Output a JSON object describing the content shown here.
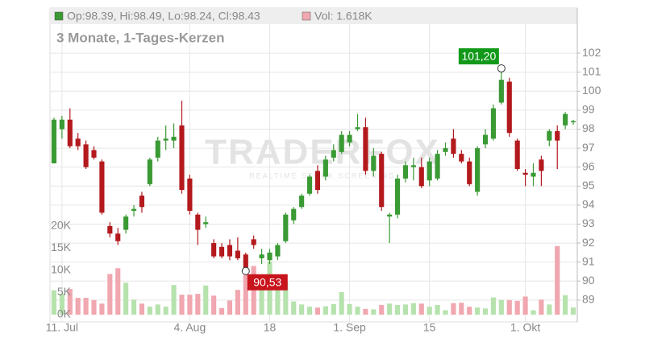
{
  "chart_data": {
    "type": "candlestick",
    "title": "3 Monate, 1-Tages-Kerzen",
    "info": "Op:98.39, Hi:98.49, Lo:98.24, Cl:98.43",
    "volume_info": "Vol: 1.618K",
    "watermark": "TRADERFOX",
    "watermark_sub": "REALTIME STOCK SCREENING",
    "categories": [
      null,
      "11. Jul",
      null,
      null,
      null,
      null,
      null,
      null,
      null,
      null,
      null,
      null,
      null,
      null,
      null,
      null,
      null,
      "4. Aug",
      null,
      null,
      null,
      null,
      null,
      null,
      null,
      null,
      null,
      "18",
      null,
      null,
      null,
      null,
      null,
      null,
      null,
      null,
      null,
      "1. Sep",
      null,
      null,
      null,
      null,
      null,
      null,
      null,
      null,
      null,
      "15",
      null,
      null,
      null,
      null,
      null,
      null,
      null,
      null,
      null,
      null,
      null,
      "1. Okt",
      null,
      null,
      null,
      null,
      null,
      null
    ],
    "open": [
      96.2,
      98.0,
      98.5,
      97.5,
      97.2,
      96.9,
      96.3,
      92.9,
      92.5,
      92.7,
      93.7,
      94.5,
      95.1,
      96.5,
      97.4,
      97.4,
      98.2,
      95.4,
      93.5,
      93.0,
      92.0,
      91.8,
      91.9,
      91.6,
      91.4,
      92.2,
      91.2,
      91.1,
      91.3,
      92.1,
      93.2,
      93.9,
      94.6,
      95.8,
      95.5,
      96.5,
      96.8,
      97.3,
      98.0,
      98.1,
      95.8,
      96.7,
      93.4,
      93.5,
      95.4,
      96.0,
      96.0,
      95.3,
      95.4,
      96.8,
      97.5,
      96.7,
      96.3,
      94.7,
      97.2,
      97.5,
      99.4,
      100.5,
      97.4,
      95.7,
      95.5,
      96.4,
      97.4,
      97.9,
      98.2,
      98.39
    ],
    "high": [
      98.6,
      98.7,
      99.1,
      97.8,
      97.4,
      97.1,
      96.4,
      93.1,
      92.8,
      93.5,
      94.0,
      94.7,
      96.5,
      97.6,
      98.2,
      98.3,
      99.5,
      95.6,
      93.6,
      93.4,
      92.2,
      92.0,
      92.2,
      92.3,
      91.5,
      92.4,
      91.7,
      91.7,
      92.0,
      93.6,
      93.9,
      94.6,
      95.6,
      96.1,
      96.6,
      97.2,
      97.9,
      97.9,
      98.8,
      98.6,
      97.0,
      96.8,
      93.6,
      95.6,
      96.3,
      96.5,
      96.5,
      96.5,
      96.9,
      97.3,
      98.0,
      96.9,
      96.5,
      97.1,
      98.0,
      99.3,
      101.2,
      100.7,
      97.5,
      95.9,
      96.2,
      96.6,
      98.0,
      98.2,
      98.9,
      98.49
    ],
    "low": [
      96.2,
      97.5,
      97.0,
      96.9,
      95.9,
      96.4,
      93.5,
      92.3,
      91.9,
      92.5,
      93.4,
      93.6,
      95.0,
      96.3,
      96.9,
      97.0,
      94.6,
      93.5,
      91.9,
      92.8,
      91.2,
      91.2,
      91.1,
      91.1,
      90.53,
      91.7,
      90.9,
      90.9,
      91.1,
      92.0,
      93.0,
      93.8,
      94.5,
      94.6,
      95.3,
      96.3,
      96.7,
      97.1,
      97.9,
      95.6,
      95.5,
      93.7,
      92.0,
      93.3,
      95.2,
      95.3,
      94.9,
      95.0,
      95.3,
      96.6,
      96.5,
      96.2,
      95.0,
      94.5,
      97.0,
      97.4,
      99.3,
      97.6,
      95.8,
      95.0,
      95.0,
      95.0,
      97.1,
      95.9,
      98.0,
      98.24
    ],
    "close": [
      98.5,
      98.5,
      97.1,
      97.1,
      96.0,
      96.5,
      93.6,
      92.5,
      92.1,
      93.4,
      93.8,
      93.9,
      96.4,
      97.4,
      97.5,
      97.6,
      94.8,
      93.7,
      92.7,
      93.1,
      91.3,
      91.3,
      91.3,
      91.2,
      90.6,
      91.9,
      91.4,
      91.5,
      91.9,
      93.5,
      93.8,
      94.5,
      95.5,
      94.8,
      96.4,
      96.9,
      97.7,
      97.7,
      98.1,
      95.8,
      96.6,
      93.9,
      93.5,
      95.4,
      96.1,
      96.1,
      95.0,
      96.3,
      96.7,
      97.0,
      96.7,
      96.3,
      95.1,
      97.0,
      97.7,
      99.1,
      100.6,
      97.8,
      95.9,
      95.6,
      95.7,
      95.8,
      97.9,
      97.4,
      98.8,
      98.43
    ],
    "volume": [
      5500,
      4700,
      5800,
      3800,
      3800,
      3300,
      2500,
      9200,
      10500,
      7200,
      3400,
      2500,
      1800,
      2300,
      1800,
      6700,
      4500,
      4500,
      4700,
      6600,
      4300,
      1500,
      3200,
      5600,
      9000,
      11000,
      9000,
      12000,
      8000,
      7400,
      3000,
      2300,
      1800,
      1600,
      1900,
      2400,
      5100,
      2400,
      1800,
      1300,
      1200,
      2200,
      2500,
      2200,
      2300,
      2600,
      2500,
      1800,
      2200,
      1000,
      2600,
      2700,
      1800,
      1600,
      1400,
      3900,
      3300,
      3300,
      3100,
      4100,
      1000,
      3400,
      2300,
      15500,
      4400,
      1618
    ],
    "up_color": "#3a9a34",
    "down_color": "#b3191d",
    "volume_up_color": "#b6e2ad",
    "volume_down_color": "#f0a7b0",
    "ylim": [
      87.85,
      103.53
    ],
    "yticks": [
      89,
      90,
      91,
      92,
      93,
      94,
      95,
      96,
      97,
      98,
      99,
      100,
      101,
      102
    ],
    "y2lim": [
      0,
      20000
    ],
    "y2ticks": [
      {
        "value": 0,
        "label": "0K"
      },
      {
        "value": 5000,
        "label": "5K"
      },
      {
        "value": 10000,
        "label": "10K"
      },
      {
        "value": 15000,
        "label": "15K"
      },
      {
        "value": 20000,
        "label": "20K"
      }
    ],
    "annotations": [
      {
        "label": "101,20",
        "value": 101.2
      },
      {
        "label": "90,53",
        "value": 90.53
      }
    ],
    "grid": true
  }
}
